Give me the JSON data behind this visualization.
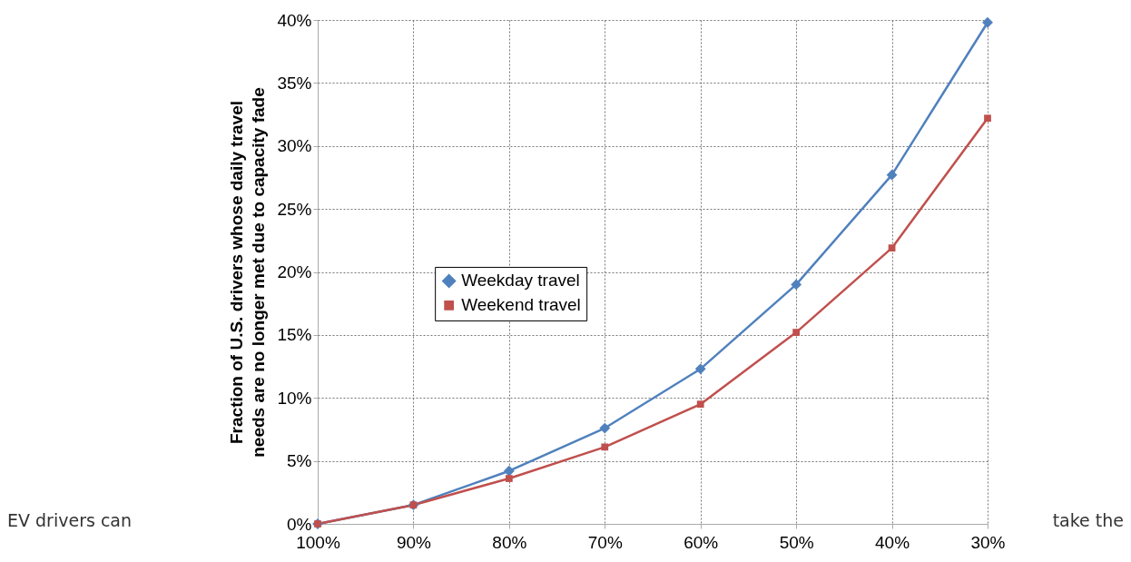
{
  "chart_data": {
    "type": "line",
    "ylabel": "Fraction of U.S. drivers whose daily travel\nneeds are no longer met due to capacity fade",
    "categories": [
      "100%",
      "90%",
      "80%",
      "70%",
      "60%",
      "50%",
      "40%",
      "30%"
    ],
    "series": [
      {
        "name": "Weekday travel",
        "color": "#4f81bd",
        "marker": "diamond",
        "values": [
          0,
          1.5,
          4.2,
          7.6,
          12.3,
          19.0,
          27.7,
          39.8
        ]
      },
      {
        "name": "Weekend travel",
        "color": "#c0504d",
        "marker": "square",
        "values": [
          0,
          1.5,
          3.6,
          6.1,
          9.5,
          15.2,
          21.9,
          32.2
        ]
      }
    ],
    "ylim": [
      0,
      40
    ],
    "yticks": [
      {
        "value": 0,
        "label": "0%"
      },
      {
        "value": 5,
        "label": "5%"
      },
      {
        "value": 10,
        "label": "10%"
      },
      {
        "value": 15,
        "label": "15%"
      },
      {
        "value": 20,
        "label": "20%"
      },
      {
        "value": 25,
        "label": "25%"
      },
      {
        "value": 30,
        "label": "30%"
      },
      {
        "value": 35,
        "label": "35%"
      },
      {
        "value": 40,
        "label": "40%"
      }
    ],
    "grid": true,
    "legend": "left",
    "line_style": "solid",
    "annotations": [
      "EV drivers can",
      "take the"
    ]
  }
}
